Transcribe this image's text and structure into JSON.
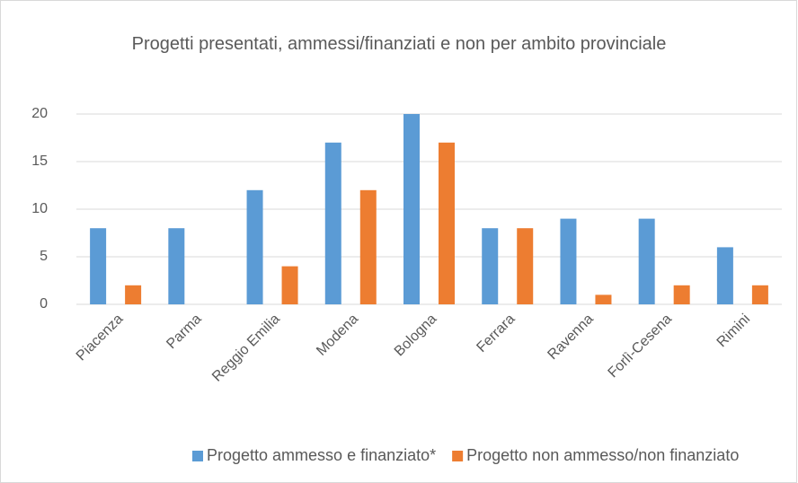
{
  "chart_data": {
    "type": "bar",
    "title": "Progetti presentati, ammessi/finanziati e non per ambito provinciale",
    "categories": [
      "Piacenza",
      "Parma",
      "Reggio Emilia",
      "Modena",
      "Bologna",
      "Ferrara",
      "Ravenna",
      "Forlì-Cesena",
      "Rimini"
    ],
    "series": [
      {
        "name": "Progetto ammesso e finanziato*",
        "color": "#5b9bd5",
        "values": [
          8,
          8,
          12,
          17,
          20,
          8,
          9,
          9,
          6
        ]
      },
      {
        "name": "Progetto non ammesso/non finanziato",
        "color": "#ed7d31",
        "values": [
          2,
          0,
          4,
          12,
          17,
          8,
          1,
          2,
          2
        ]
      }
    ],
    "ylim": [
      0,
      20
    ],
    "yticks": [
      0,
      5,
      10,
      15,
      20
    ],
    "grid": true,
    "legend": "bottom"
  }
}
